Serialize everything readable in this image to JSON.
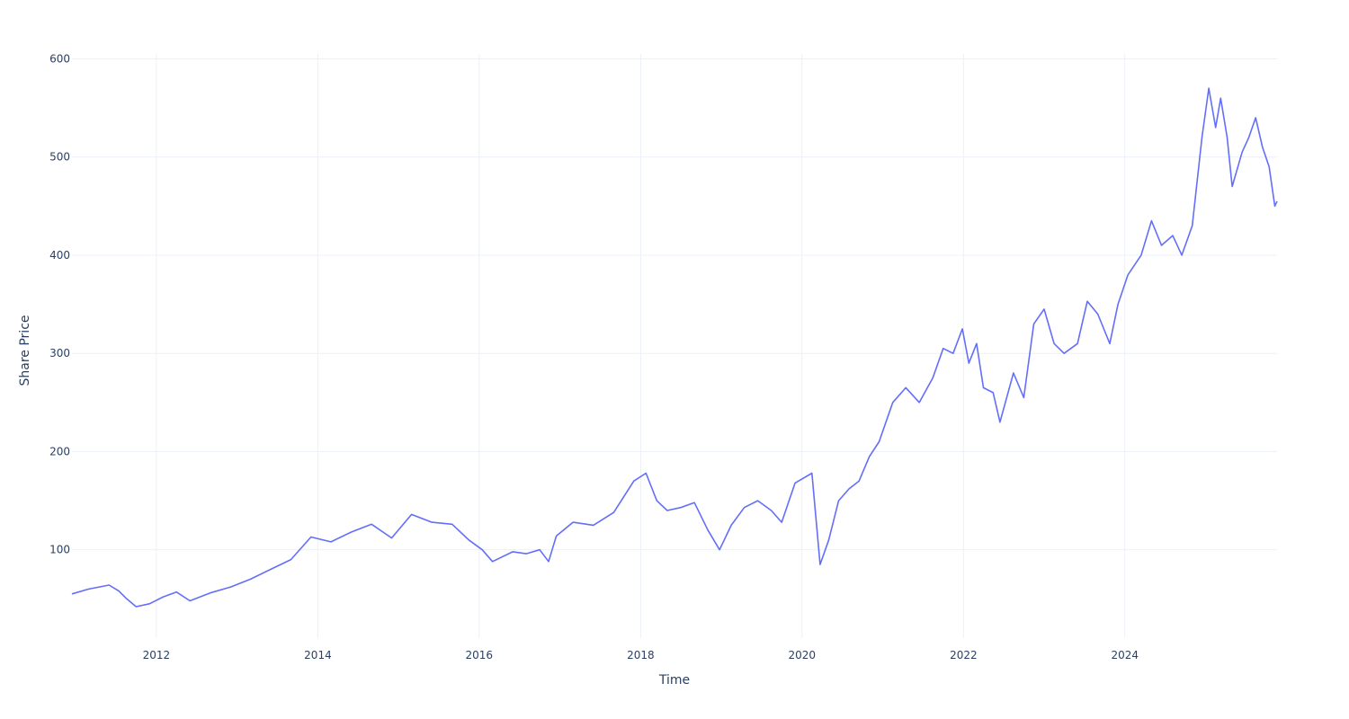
{
  "chart_data": {
    "type": "line",
    "title": "",
    "xlabel": "Time",
    "ylabel": "Share Price",
    "xlim": [
      "2010-12-15",
      "2025-11-20"
    ],
    "ylim": [
      10,
      605
    ],
    "x_ticks": [
      "2012",
      "2014",
      "2016",
      "2018",
      "2020",
      "2022",
      "2024"
    ],
    "y_ticks": [
      100,
      200,
      300,
      400,
      500,
      600
    ],
    "grid": true,
    "legend": "none",
    "line_color": "#636efa",
    "series": [
      {
        "x": [
          "2010-12-15",
          "2011-03-01",
          "2011-06-01",
          "2011-07-15",
          "2011-08-20",
          "2011-10-01",
          "2011-12-01",
          "2012-02-01",
          "2012-04-01",
          "2012-06-01",
          "2012-09-01",
          "2012-12-01",
          "2013-03-01",
          "2013-06-01",
          "2013-09-01",
          "2013-12-01",
          "2014-03-01",
          "2014-06-01",
          "2014-09-01",
          "2014-12-01",
          "2015-03-01",
          "2015-06-01",
          "2015-09-01",
          "2015-11-15",
          "2016-01-15",
          "2016-03-01",
          "2016-06-01",
          "2016-08-01",
          "2016-10-01",
          "2016-11-10",
          "2016-12-15",
          "2017-03-01",
          "2017-06-01",
          "2017-09-01",
          "2017-12-01",
          "2018-01-25",
          "2018-03-15",
          "2018-05-01",
          "2018-07-01",
          "2018-09-01",
          "2018-11-01",
          "2018-12-24",
          "2019-02-15",
          "2019-04-15",
          "2019-06-15",
          "2019-08-15",
          "2019-10-01",
          "2019-12-01",
          "2020-02-15",
          "2020-03-23",
          "2020-05-01",
          "2020-06-15",
          "2020-08-01",
          "2020-09-15",
          "2020-11-01",
          "2020-12-15",
          "2021-02-15",
          "2021-04-15",
          "2021-06-15",
          "2021-08-15",
          "2021-10-01",
          "2021-11-15",
          "2021-12-27",
          "2022-01-25",
          "2022-03-01",
          "2022-04-01",
          "2022-05-15",
          "2022-06-15",
          "2022-08-15",
          "2022-10-01",
          "2022-11-15",
          "2023-01-01",
          "2023-02-15",
          "2023-04-01",
          "2023-06-01",
          "2023-07-15",
          "2023-09-01",
          "2023-10-25",
          "2023-12-01",
          "2024-01-15",
          "2024-03-15",
          "2024-05-01",
          "2024-06-15",
          "2024-08-05",
          "2024-09-15",
          "2024-11-01",
          "2024-12-15",
          "2025-01-15",
          "2025-02-15",
          "2025-03-10",
          "2025-04-08",
          "2025-05-01",
          "2025-06-15",
          "2025-07-15",
          "2025-08-15",
          "2025-09-15",
          "2025-10-15",
          "2025-11-10",
          "2025-11-20"
        ],
        "y": [
          55,
          60,
          64,
          58,
          50,
          42,
          45,
          52,
          57,
          48,
          56,
          62,
          70,
          80,
          90,
          113,
          108,
          118,
          126,
          112,
          136,
          128,
          126,
          110,
          100,
          88,
          98,
          96,
          100,
          88,
          114,
          128,
          125,
          138,
          170,
          178,
          150,
          140,
          143,
          148,
          120,
          100,
          125,
          143,
          150,
          140,
          128,
          168,
          178,
          85,
          110,
          150,
          162,
          170,
          195,
          210,
          250,
          265,
          250,
          275,
          305,
          300,
          325,
          290,
          310,
          265,
          260,
          230,
          280,
          255,
          330,
          345,
          310,
          300,
          310,
          353,
          340,
          310,
          350,
          380,
          400,
          435,
          410,
          420,
          400,
          430,
          520,
          570,
          530,
          560,
          520,
          470,
          505,
          520,
          540,
          510,
          490,
          450,
          455
        ]
      }
    ]
  }
}
